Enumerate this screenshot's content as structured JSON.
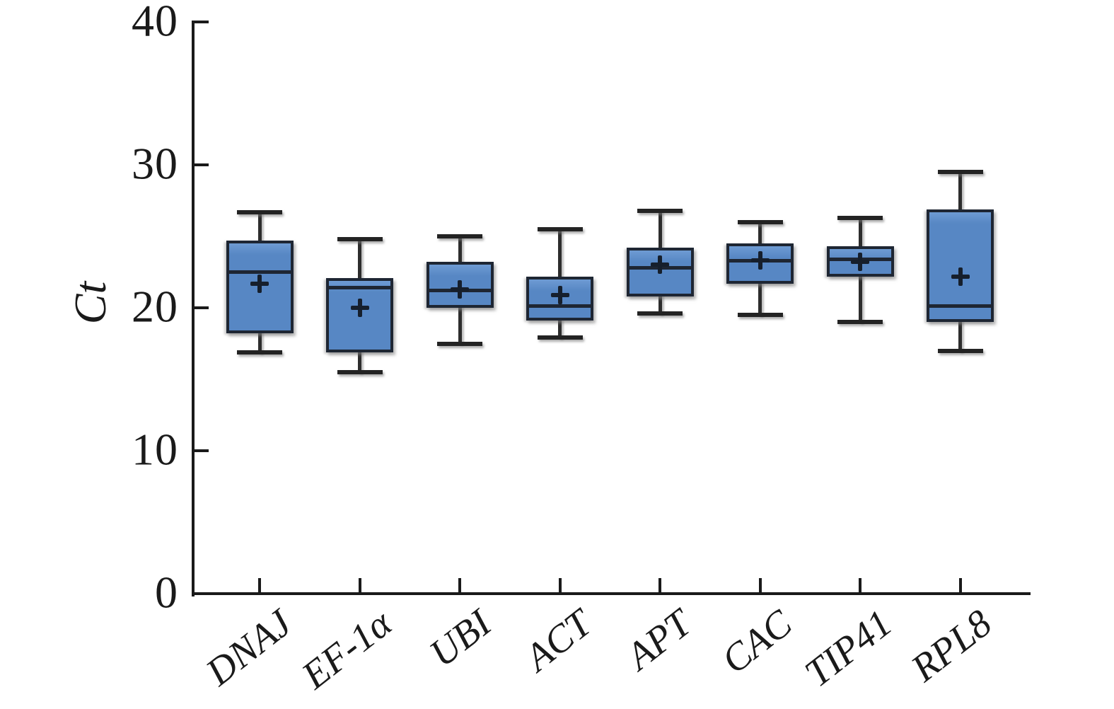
{
  "chart_data": {
    "type": "boxplot",
    "title": "",
    "ylabel": "Ct",
    "xlabel": "",
    "ylim": [
      0,
      40
    ],
    "yticks": [
      0,
      10,
      20,
      30,
      40
    ],
    "grid": false,
    "legend": "none",
    "categories": [
      "DNAJ",
      "EF-1α",
      "UBI",
      "ACT",
      "APT",
      "CAC",
      "TIP41",
      "RPL8"
    ],
    "boxes": [
      {
        "category": "DNAJ",
        "whisker_low": 16.9,
        "q1": 18.3,
        "median": 22.5,
        "q3": 24.6,
        "whisker_high": 26.7,
        "mean": 21.7
      },
      {
        "category": "EF-1α",
        "whisker_low": 15.5,
        "q1": 17.0,
        "median": 21.4,
        "q3": 22.0,
        "whisker_high": 24.8,
        "mean": 20.0
      },
      {
        "category": "UBI",
        "whisker_low": 17.5,
        "q1": 20.1,
        "median": 21.2,
        "q3": 23.1,
        "whisker_high": 25.0,
        "mean": 21.3
      },
      {
        "category": "ACT",
        "whisker_low": 17.9,
        "q1": 19.2,
        "median": 20.1,
        "q3": 22.1,
        "whisker_high": 25.5,
        "mean": 20.9
      },
      {
        "category": "APT",
        "whisker_low": 19.6,
        "q1": 20.9,
        "median": 22.8,
        "q3": 24.1,
        "whisker_high": 26.8,
        "mean": 23.0
      },
      {
        "category": "CAC",
        "whisker_low": 19.5,
        "q1": 21.8,
        "median": 23.3,
        "q3": 24.4,
        "whisker_high": 26.0,
        "mean": 23.3
      },
      {
        "category": "TIP41",
        "whisker_low": 19.0,
        "q1": 22.3,
        "median": 23.4,
        "q3": 24.2,
        "whisker_high": 26.3,
        "mean": 23.2
      },
      {
        "category": "RPL8",
        "whisker_low": 17.0,
        "q1": 19.1,
        "median": 20.1,
        "q3": 26.8,
        "whisker_high": 29.5,
        "mean": 22.2
      }
    ],
    "colors": {
      "box_fill": "#5787c4",
      "box_border": "#1e2633",
      "median": "#1e2633",
      "whisker": "#2d2d2d",
      "mean_marker": "#161f2c",
      "axis": "#1a1a1a",
      "background": "#ffffff",
      "shadow": "rgba(120,120,120,0.55)"
    }
  }
}
